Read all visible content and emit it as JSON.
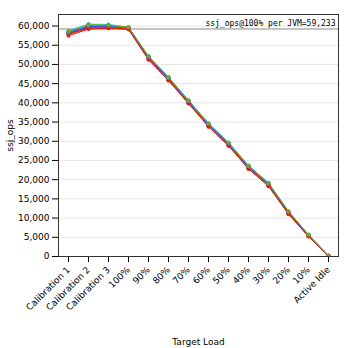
{
  "chart_data": {
    "type": "line",
    "xlabel": "Target Load",
    "ylabel": "ssj_ops",
    "categories": [
      "Calibration 1",
      "Calibration 2",
      "Calibration 3",
      "100%",
      "90%",
      "80%",
      "70%",
      "60%",
      "50%",
      "40%",
      "30%",
      "20%",
      "10%",
      "Active Idle"
    ],
    "series": [
      {
        "color": "#0000dd",
        "values": [
          58500,
          59800,
          59900,
          59500,
          52000,
          46500,
          40500,
          34500,
          29500,
          23500,
          19000,
          11500,
          5500,
          200
        ]
      },
      {
        "color": "#ff0000",
        "values": [
          57500,
          59200,
          59400,
          59100,
          51200,
          45800,
          39800,
          33800,
          28800,
          22800,
          18300,
          11000,
          5200,
          100
        ]
      },
      {
        "color": "#00bb00",
        "values": [
          58000,
          60200,
          60100,
          59600,
          51800,
          46200,
          40200,
          34200,
          29200,
          23200,
          18700,
          11300,
          5400,
          180
        ]
      },
      {
        "color": "#ff00ff",
        "values": [
          58200,
          59600,
          59800,
          59400,
          51600,
          46100,
          40100,
          34100,
          29100,
          23100,
          18600,
          11250,
          5350,
          160
        ]
      },
      {
        "color": "#00cccc",
        "values": [
          58800,
          60500,
          60400,
          59700,
          52200,
          46700,
          40700,
          34700,
          29700,
          23700,
          19200,
          11700,
          5700,
          250
        ]
      },
      {
        "color": "#ff8800",
        "values": [
          57800,
          59500,
          59700,
          59300,
          51500,
          46000,
          40000,
          34000,
          29000,
          23000,
          18500,
          11200,
          5300,
          150
        ]
      },
      {
        "color": "#9900cc",
        "values": [
          58100,
          59700,
          59900,
          59500,
          51700,
          46300,
          40300,
          34300,
          29300,
          23300,
          18800,
          11400,
          5450,
          170
        ]
      },
      {
        "color": "#cc2200",
        "values": [
          57900,
          59400,
          59600,
          59200,
          51400,
          45900,
          39900,
          33900,
          28900,
          22900,
          18400,
          11100,
          5250,
          130
        ]
      },
      {
        "color": "#0099ff",
        "values": [
          58300,
          60000,
          60000,
          59600,
          51900,
          46400,
          40400,
          34400,
          29400,
          23400,
          18900,
          11600,
          5600,
          220
        ]
      },
      {
        "color": "#999900",
        "values": [
          58600,
          60300,
          60200,
          59700,
          52100,
          46600,
          40600,
          34600,
          29600,
          23600,
          19100,
          11800,
          5650,
          240
        ]
      }
    ],
    "annotations": [
      {
        "text": "ssj_ops@100% per JVM=59,233",
        "y": 59233
      }
    ],
    "ylim": [
      0,
      63000
    ],
    "yticks": [
      0,
      {
        "value": 5000,
        "label": "5,000"
      },
      {
        "value": 10000,
        "label": "10,000"
      },
      {
        "value": 15000,
        "label": "15,000"
      },
      {
        "value": 20000,
        "label": "20,000"
      },
      {
        "value": 25000,
        "label": "25,000"
      },
      {
        "value": 30000,
        "label": "30,000"
      },
      {
        "value": 35000,
        "label": "35,000"
      },
      {
        "value": 40000,
        "label": "40,000"
      },
      {
        "value": 45000,
        "label": "45,000"
      },
      {
        "value": 50000,
        "label": "50,000"
      },
      {
        "value": 55000,
        "label": "55,000"
      },
      {
        "value": 60000,
        "label": "60,000"
      }
    ],
    "grid": true,
    "marker": "circle"
  }
}
